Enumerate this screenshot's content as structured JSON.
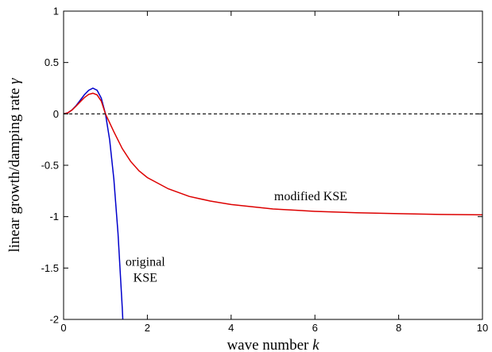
{
  "chart_data": {
    "type": "line",
    "title": "",
    "xlabel": "wave number",
    "xlabel_symbol": "k",
    "ylabel": "linear growth/damping rate",
    "ylabel_symbol": "γ",
    "xlim": [
      0,
      10
    ],
    "ylim": [
      -2,
      1
    ],
    "xticks": [
      0,
      2,
      4,
      6,
      8,
      10
    ],
    "yticks": [
      1,
      0.5,
      0,
      -0.5,
      -1,
      -1.5,
      -2
    ],
    "ytick_labels": [
      "1",
      "0.5",
      "0",
      "-0.5",
      "-1",
      "-1.5",
      "-2"
    ],
    "grid": false,
    "legend": "none",
    "reference_line": {
      "y": 0,
      "style": "dashed",
      "color": "#000000"
    },
    "series": [
      {
        "color": "#0000cc",
        "x": [
          0,
          0.1,
          0.2,
          0.3,
          0.4,
          0.5,
          0.6,
          0.7,
          0.8,
          0.9,
          1.0,
          1.1,
          1.2,
          1.3,
          1.4,
          1.414
        ],
        "y": [
          0,
          0.01,
          0.038,
          0.081,
          0.134,
          0.188,
          0.23,
          0.25,
          0.23,
          0.153,
          0,
          -0.253,
          -0.634,
          -1.166,
          -1.882,
          -2.0
        ]
      },
      {
        "color": "#dd0000",
        "x": [
          0,
          0.1,
          0.2,
          0.3,
          0.4,
          0.5,
          0.6,
          0.7,
          0.8,
          0.9,
          1.0,
          1.2,
          1.4,
          1.6,
          1.8,
          2.0,
          2.5,
          3,
          3.5,
          4,
          5,
          6,
          7,
          8,
          9,
          10
        ],
        "y": [
          0,
          0.01,
          0.037,
          0.076,
          0.119,
          0.16,
          0.19,
          0.201,
          0.185,
          0.124,
          0,
          -0.174,
          -0.337,
          -0.462,
          -0.554,
          -0.62,
          -0.729,
          -0.803,
          -0.848,
          -0.882,
          -0.925,
          -0.948,
          -0.962,
          -0.971,
          -0.978,
          -0.982
        ]
      }
    ],
    "annotations": [
      {
        "text": "modified KSE",
        "x": 5.9,
        "y": -0.84
      },
      {
        "lines": [
          "original",
          "KSE"
        ],
        "x": 1.95,
        "y": -1.48
      }
    ]
  }
}
